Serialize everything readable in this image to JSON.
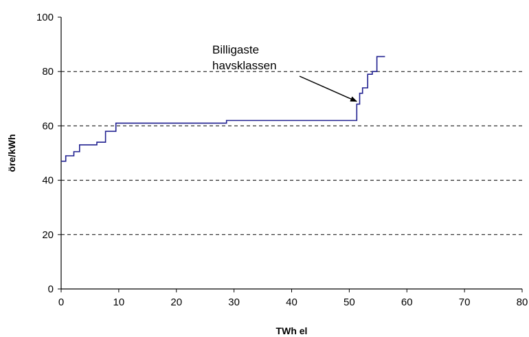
{
  "chart_data": {
    "type": "line",
    "title": "",
    "xlabel": "TWh el",
    "ylabel": "öre/kWh",
    "xlim": [
      0,
      80
    ],
    "ylim": [
      0,
      100
    ],
    "xticks": [
      "0",
      "10",
      "20",
      "30",
      "40",
      "50",
      "60",
      "70",
      "80"
    ],
    "yticks": [
      "0",
      "20",
      "40",
      "60",
      "80",
      "100"
    ],
    "grid": "horizontal dashed",
    "legend": "none",
    "series": [
      {
        "color": "#1f1f8f",
        "step": true,
        "points": [
          [
            0,
            47
          ],
          [
            0.8,
            47
          ],
          [
            0.8,
            49
          ],
          [
            2.2,
            49
          ],
          [
            2.2,
            50.5
          ],
          [
            3.2,
            50.5
          ],
          [
            3.2,
            53
          ],
          [
            6.2,
            53
          ],
          [
            6.2,
            54
          ],
          [
            7.7,
            54
          ],
          [
            7.7,
            58
          ],
          [
            9.5,
            58
          ],
          [
            9.5,
            61
          ],
          [
            28.7,
            61
          ],
          [
            28.7,
            62
          ],
          [
            51.3,
            62
          ],
          [
            51.3,
            68
          ],
          [
            51.8,
            68
          ],
          [
            51.8,
            72
          ],
          [
            52.3,
            72
          ],
          [
            52.3,
            74
          ],
          [
            53.2,
            74
          ],
          [
            53.2,
            79
          ],
          [
            54.0,
            79
          ],
          [
            54.0,
            80
          ],
          [
            54.8,
            80
          ],
          [
            54.8,
            85.5
          ],
          [
            56.2,
            85.5
          ]
        ]
      }
    ],
    "annotations": [
      {
        "text_lines": [
          "Billigaste",
          "havsklassen"
        ],
        "arrow_to": [
          51.4,
          68.5
        ]
      }
    ]
  }
}
